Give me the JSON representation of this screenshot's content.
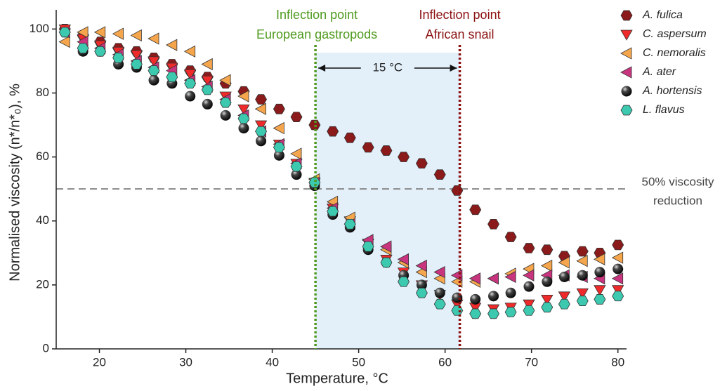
{
  "chart_data": {
    "type": "scatter",
    "xlabel": "Temperature, °C",
    "ylabel": "Normalised viscosity (n*/n*₀), %",
    "xlim": [
      15,
      81
    ],
    "ylim": [
      0,
      106
    ],
    "xticks": [
      20,
      30,
      40,
      50,
      60,
      70,
      80
    ],
    "yticks": [
      0,
      20,
      40,
      60,
      80,
      100
    ],
    "x": [
      16.0,
      18.1,
      20.1,
      22.2,
      24.3,
      26.3,
      28.4,
      30.5,
      32.5,
      34.6,
      36.7,
      38.7,
      40.8,
      42.8,
      44.9,
      47.0,
      49.0,
      51.1,
      53.2,
      55.2,
      57.3,
      59.4,
      61.4,
      63.5,
      65.6,
      67.6,
      69.7,
      71.8,
      73.8,
      75.9,
      77.9,
      80.0
    ],
    "series": [
      {
        "name": "A. fulica",
        "color": "#8b1a1a",
        "marker": "hexagon",
        "values": [
          100,
          98,
          96,
          94,
          93,
          91,
          89,
          87,
          85,
          83,
          80.5,
          78,
          75,
          72.5,
          70,
          68,
          66,
          63,
          62,
          60,
          58,
          54.5,
          49.5,
          43.5,
          39,
          35,
          31.5,
          31,
          29,
          30.5,
          30,
          32.5
        ]
      },
      {
        "name": "C. aspersum",
        "color": "#ee2a2a",
        "marker": "triangle-down",
        "values": [
          100,
          97,
          95,
          93,
          92,
          90,
          88,
          86,
          84,
          79,
          75,
          70,
          64,
          58,
          52,
          44,
          40,
          33,
          28,
          24,
          20,
          17,
          14,
          13,
          12.5,
          13,
          14,
          15.5,
          16.5,
          17.5,
          18.5,
          18.5
        ]
      },
      {
        "name": "C. nemoralis",
        "color": "#f5a64c",
        "marker": "triangle-left",
        "values": [
          96,
          99,
          99,
          98.5,
          98,
          97,
          95,
          93,
          89,
          84,
          79,
          75,
          69,
          61,
          53,
          46,
          41,
          34,
          31,
          27,
          24,
          22,
          21,
          21,
          22,
          23.5,
          25,
          26,
          27,
          27.5,
          28,
          28.5
        ]
      },
      {
        "name": "A. ater",
        "color": "#c8347e",
        "marker": "triangle-left",
        "values": [
          99,
          96,
          94,
          92,
          90,
          88,
          87,
          84,
          82,
          78,
          73,
          68,
          64,
          58,
          52,
          44,
          39,
          34,
          32,
          28,
          26,
          24,
          23,
          22,
          22,
          22.5,
          23,
          23,
          23,
          22.5,
          22,
          22
        ]
      },
      {
        "name": "A. hortensis",
        "color": "#111111",
        "marker": "circle",
        "values": [
          99,
          93,
          93,
          89,
          88,
          84,
          83,
          79,
          76.5,
          73,
          69,
          65,
          60.5,
          54.5,
          51,
          42,
          38,
          31,
          27,
          23,
          20,
          17.5,
          16,
          15.5,
          16.5,
          17.5,
          19.5,
          21,
          22.5,
          23,
          24,
          25
        ]
      },
      {
        "name": "L. flavus",
        "color": "#3cc9b0",
        "marker": "hexagon",
        "values": [
          99,
          94,
          93,
          91,
          89,
          87,
          85,
          83,
          81,
          77,
          72,
          68,
          63,
          57,
          52,
          43,
          39,
          32,
          27,
          21,
          17.5,
          14,
          12,
          11,
          11,
          11.5,
          12,
          13,
          14,
          15,
          15.5,
          16.5
        ]
      }
    ],
    "vlines": [
      {
        "x": 45,
        "color": "#4f9a1e",
        "label": [
          "Inflection point",
          "European gastropods"
        ]
      },
      {
        "x": 61.7,
        "color": "#8b1010",
        "label": [
          "Inflection point",
          "African snail"
        ]
      }
    ],
    "span_label": "15 °C",
    "hline": {
      "y": 50,
      "label": [
        "50% viscosity",
        "reduction"
      ]
    },
    "legend": "upper right"
  }
}
